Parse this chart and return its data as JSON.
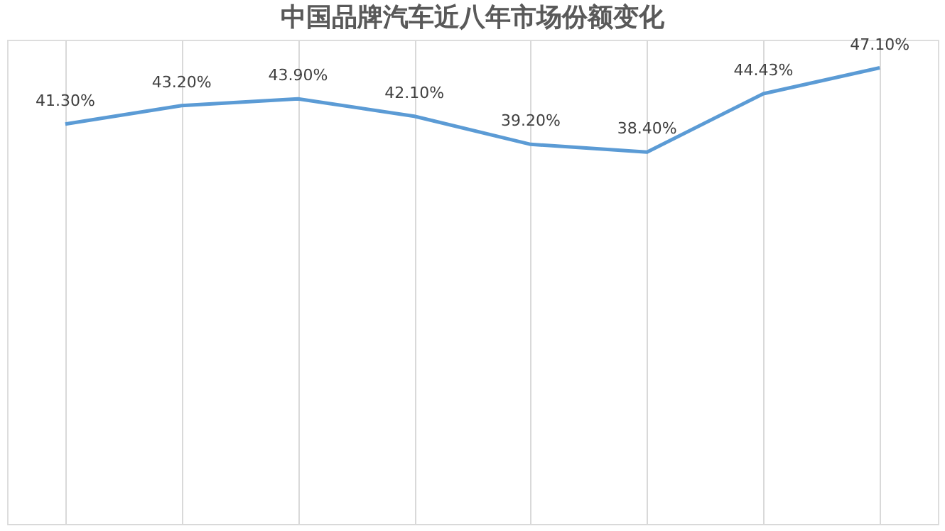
{
  "chart_data": {
    "type": "line",
    "title": "中国品牌汽车近八年市场份额变化",
    "categories": [
      null,
      null,
      null,
      null,
      null,
      null,
      null,
      null
    ],
    "series": [
      {
        "color": "#5b9bd5",
        "values": [
          41.3,
          43.2,
          43.9,
          42.1,
          39.2,
          38.4,
          44.43,
          47.1
        ],
        "value_labels": [
          "41.30%",
          "43.20%",
          "43.90%",
          "42.10%",
          "39.20%",
          "38.40%",
          "44.43%",
          "47.10%"
        ]
      }
    ],
    "ylim": [
      0,
      50
    ],
    "grid": "x",
    "tick_labels": false,
    "marker": "none",
    "line_style": "solid"
  }
}
